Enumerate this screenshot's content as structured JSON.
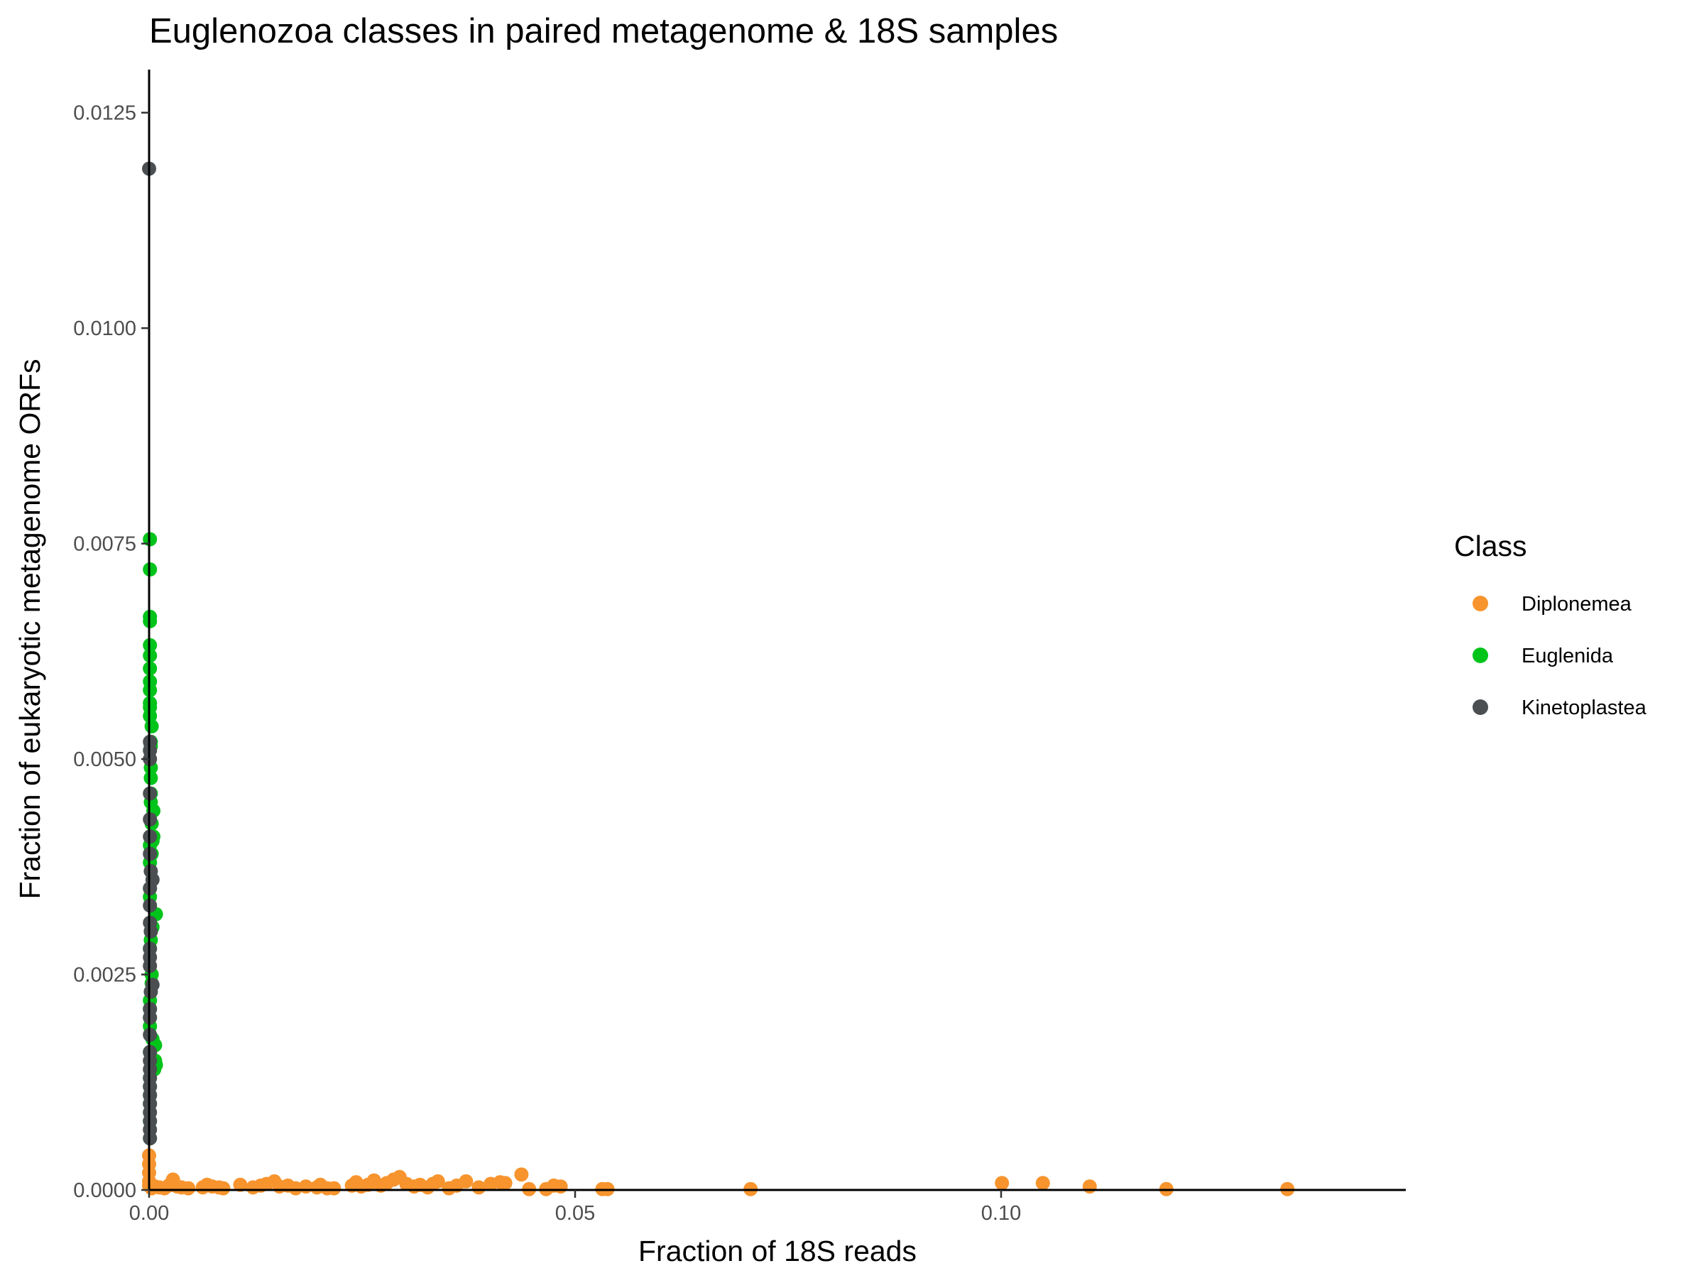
{
  "chart_data": {
    "type": "scatter",
    "title": "Euglenozoa classes in paired metagenome & 18S samples",
    "xlabel": "Fraction of 18S reads",
    "ylabel": "Fraction of eukaryotic metagenome ORFs",
    "xlim": [
      0,
      0.1475
    ],
    "ylim": [
      0,
      0.013
    ],
    "x_ticks": [
      0,
      0.05,
      0.1
    ],
    "x_tick_labels": [
      "0.00",
      "0.05",
      "0.10"
    ],
    "y_ticks": [
      0,
      0.0025,
      0.005,
      0.0075,
      0.01,
      0.0125
    ],
    "y_tick_labels": [
      "0.0000",
      "0.0025",
      "0.0050",
      "0.0075",
      "0.0100",
      "0.0125"
    ],
    "grid": false,
    "legend": {
      "title": "Class",
      "position": "right"
    },
    "series": [
      {
        "name": "Diplonemea",
        "color": "#F7942D",
        "points": [
          [
            0,
            0.0004
          ],
          [
            0,
            0.0003
          ],
          [
            0,
            0.0002
          ],
          [
            0,
            0.0001
          ],
          [
            0,
            5e-05
          ],
          [
            0.0003,
            2e-05
          ],
          [
            0.0007,
            4e-05
          ],
          [
            0.0012,
            3e-05
          ],
          [
            0.0018,
            2e-05
          ],
          [
            0.0023,
            5e-05
          ],
          [
            0.0028,
            0.00012
          ],
          [
            0.0033,
            4e-05
          ],
          [
            0.0038,
            3e-05
          ],
          [
            0.0046,
            2e-05
          ],
          [
            0.0063,
            3e-05
          ],
          [
            0.0068,
            6e-05
          ],
          [
            0.0074,
            4e-05
          ],
          [
            0.0082,
            3e-05
          ],
          [
            0.0087,
            2e-05
          ],
          [
            0.0107,
            6e-05
          ],
          [
            0.0122,
            3e-05
          ],
          [
            0.0131,
            5e-05
          ],
          [
            0.0138,
            7e-05
          ],
          [
            0.0147,
            0.0001
          ],
          [
            0.0153,
            4e-05
          ],
          [
            0.0163,
            5e-05
          ],
          [
            0.0172,
            2e-05
          ],
          [
            0.0184,
            4e-05
          ],
          [
            0.0197,
            3e-05
          ],
          [
            0.0201,
            6e-05
          ],
          [
            0.0209,
            2e-05
          ],
          [
            0.0217,
            2e-05
          ],
          [
            0.0238,
            5e-05
          ],
          [
            0.0243,
            9e-05
          ],
          [
            0.0249,
            4e-05
          ],
          [
            0.0257,
            6e-05
          ],
          [
            0.0264,
            0.00011
          ],
          [
            0.0272,
            5e-05
          ],
          [
            0.0279,
            8e-05
          ],
          [
            0.0287,
            0.00012
          ],
          [
            0.0294,
            0.00015
          ],
          [
            0.0302,
            7e-05
          ],
          [
            0.0311,
            4e-05
          ],
          [
            0.0318,
            6e-05
          ],
          [
            0.0327,
            3e-05
          ],
          [
            0.0333,
            7e-05
          ],
          [
            0.0339,
            0.0001
          ],
          [
            0.0352,
            2e-05
          ],
          [
            0.0361,
            5e-05
          ],
          [
            0.0372,
            0.0001
          ],
          [
            0.0387,
            3e-05
          ],
          [
            0.0401,
            7e-05
          ],
          [
            0.0412,
            9e-05
          ],
          [
            0.0418,
            8e-05
          ],
          [
            0.0437,
            0.00018
          ],
          [
            0.0446,
            1e-05
          ],
          [
            0.0466,
            1e-05
          ],
          [
            0.0475,
            5e-05
          ],
          [
            0.0483,
            4e-05
          ],
          [
            0.0532,
            1e-05
          ],
          [
            0.0538,
            1e-05
          ],
          [
            0.0706,
            1e-05
          ],
          [
            0.1001,
            8e-05
          ],
          [
            0.1049,
            8e-05
          ],
          [
            0.1104,
            4e-05
          ],
          [
            0.1194,
            1e-05
          ],
          [
            0.1336,
            1e-05
          ]
        ]
      },
      {
        "name": "Euglenida",
        "color": "#00C41A",
        "points": [
          [
            0.0001,
            0.00755
          ],
          [
            0.0001,
            0.0072
          ],
          [
            0.0001,
            0.00665
          ],
          [
            0.0001,
            0.0066
          ],
          [
            0.0001,
            0.00632
          ],
          [
            0.0001,
            0.0062
          ],
          [
            0.0001,
            0.00605
          ],
          [
            0.0001,
            0.0059
          ],
          [
            0.0001,
            0.0058
          ],
          [
            0.0001,
            0.00565
          ],
          [
            0.0001,
            0.0056
          ],
          [
            0.0001,
            0.0055
          ],
          [
            0.0003,
            0.00538
          ],
          [
            0.0002,
            0.0052
          ],
          [
            0.0002,
            0.00515
          ],
          [
            0.0002,
            0.0049
          ],
          [
            0.0002,
            0.00478
          ],
          [
            0.0002,
            0.0046
          ],
          [
            0.0002,
            0.0045
          ],
          [
            0.0005,
            0.0044
          ],
          [
            0.0003,
            0.00425
          ],
          [
            0.0005,
            0.0041
          ],
          [
            0.0004,
            0.00405
          ],
          [
            0.0001,
            0.004
          ],
          [
            0.0003,
            0.0039
          ],
          [
            0.0001,
            0.0038
          ],
          [
            0.0001,
            0.0035
          ],
          [
            0.0001,
            0.0034
          ],
          [
            0.0008,
            0.0032
          ],
          [
            0.0004,
            0.00305
          ],
          [
            0.0002,
            0.003
          ],
          [
            0.0002,
            0.0029
          ],
          [
            0.0001,
            0.0028
          ],
          [
            0.0003,
            0.0025
          ],
          [
            0.0003,
            0.0024
          ],
          [
            0.0001,
            0.0022
          ],
          [
            0.0001,
            0.0021
          ],
          [
            0.0001,
            0.002
          ],
          [
            0.0001,
            0.0019
          ],
          [
            0.0004,
            0.00175
          ],
          [
            0.0007,
            0.00168
          ],
          [
            0.0001,
            0.0016
          ],
          [
            0.0007,
            0.0015
          ],
          [
            0.0008,
            0.00145
          ],
          [
            0.0006,
            0.0014
          ],
          [
            0.0001,
            0.0013
          ],
          [
            0.0001,
            0.0012
          ],
          [
            0.0001,
            0.0011
          ],
          [
            0.0001,
            0.001
          ],
          [
            0.0001,
            0.0008
          ],
          [
            0.0001,
            0.0006
          ]
        ]
      },
      {
        "name": "Kinetoplastea",
        "color": "#4B4F52",
        "points": [
          [
            0,
            0.01185
          ],
          [
            0.0001,
            0.0052
          ],
          [
            0.0001,
            0.0051
          ],
          [
            0.0001,
            0.005
          ],
          [
            0.0001,
            0.0046
          ],
          [
            0.0001,
            0.0043
          ],
          [
            0.0001,
            0.0041
          ],
          [
            0.0001,
            0.0039
          ],
          [
            0.0002,
            0.0037
          ],
          [
            0.0004,
            0.0036
          ],
          [
            0.0001,
            0.0035
          ],
          [
            0.0001,
            0.0033
          ],
          [
            0.0001,
            0.0031
          ],
          [
            0.0002,
            0.003
          ],
          [
            0.0001,
            0.0028
          ],
          [
            0.0001,
            0.0027
          ],
          [
            0.0001,
            0.0026
          ],
          [
            0.0004,
            0.00238
          ],
          [
            0.0002,
            0.0023
          ],
          [
            0.0001,
            0.0021
          ],
          [
            0.0001,
            0.002
          ],
          [
            0.0001,
            0.0018
          ],
          [
            0.0001,
            0.0016
          ],
          [
            0.0001,
            0.0015
          ],
          [
            0.0001,
            0.0014
          ],
          [
            0.0001,
            0.0013
          ],
          [
            0.0001,
            0.0012
          ],
          [
            0.0001,
            0.0011
          ],
          [
            0.0001,
            0.001
          ],
          [
            0.0001,
            0.0009
          ],
          [
            0.0001,
            0.0008
          ],
          [
            0.0001,
            0.0007
          ],
          [
            0.0001,
            0.0006
          ]
        ]
      }
    ]
  }
}
